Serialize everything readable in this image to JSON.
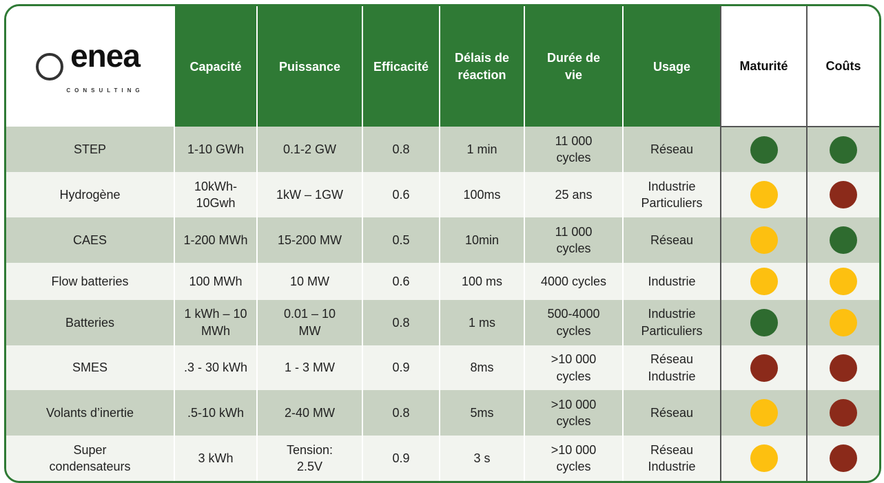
{
  "logo": {
    "name": "enea",
    "tagline": "CONSULTING"
  },
  "table": {
    "headers": [
      "Capacité",
      "Puissance",
      "Efficacité",
      "Délais de\nréaction",
      "Durée de\nvie",
      "Usage",
      "Maturité",
      "Coûts"
    ],
    "rows": [
      {
        "cells": [
          "STEP",
          "1-10 GWh",
          "0.1-2 GW",
          "0.8",
          "1 min",
          "11 000\ncycles",
          "Réseau"
        ],
        "maturite": "#2e6b2f",
        "couts": "#2e6b2f"
      },
      {
        "cells": [
          "Hydrogène",
          "10kWh-\n10Gwh",
          "1kW – 1GW",
          "0.6",
          "100ms",
          "25 ans",
          "Industrie\nParticuliers"
        ],
        "maturite": "#fdc010",
        "couts": "#8b2a1a"
      },
      {
        "cells": [
          "CAES",
          "1-200 MWh",
          "15-200 MW",
          "0.5",
          "10min",
          "11 000\ncycles",
          "Réseau"
        ],
        "maturite": "#fdc010",
        "couts": "#2e6b2f"
      },
      {
        "cells": [
          "Flow batteries",
          "100 MWh",
          "10 MW",
          "0.6",
          "100 ms",
          "4000 cycles",
          "Industrie"
        ],
        "maturite": "#fdc010",
        "couts": "#fdc010"
      },
      {
        "cells": [
          "Batteries",
          "1 kWh – 10\nMWh",
          "0.01 – 10\nMW",
          "0.8",
          "1 ms",
          "500-4000\ncycles",
          "Industrie\nParticuliers"
        ],
        "maturite": "#2e6b2f",
        "couts": "#fdc010"
      },
      {
        "cells": [
          "SMES",
          ".3 - 30 kWh",
          "1 - 3 MW",
          "0.9",
          "8ms",
          ">10 000\ncycles",
          "Réseau\nIndustrie"
        ],
        "maturite": "#8b2a1a",
        "couts": "#8b2a1a"
      },
      {
        "cells": [
          "Volants d’inertie",
          ".5-10 kWh",
          "2-40 MW",
          "0.8",
          "5ms",
          ">10 000\ncycles",
          "Réseau"
        ],
        "maturite": "#fdc010",
        "couts": "#8b2a1a"
      },
      {
        "cells": [
          "Super\ncondensateurs",
          "3 kWh",
          "Tension:\n2.5V",
          "0.9",
          "3 s",
          ">10 000\ncycles",
          "Réseau\nIndustrie"
        ],
        "maturite": "#fdc010",
        "couts": "#8b2a1a"
      }
    ]
  }
}
